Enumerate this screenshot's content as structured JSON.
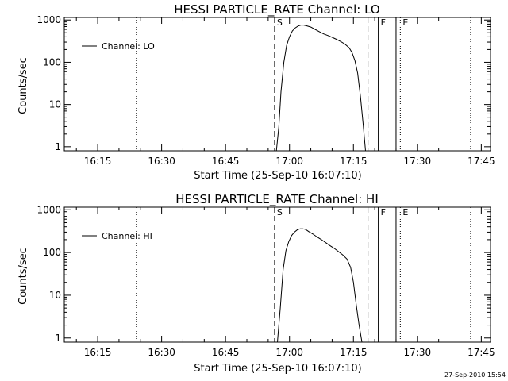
{
  "footer": {
    "timestamp": "27-Sep-2010 15:54"
  },
  "chart_data": [
    {
      "type": "line",
      "scale": "log-y",
      "title": "HESSI PARTICLE_RATE Channel: LO",
      "xlabel": "Start Time (25-Sep-10 16:07:10)",
      "ylabel": "Counts/sec",
      "xlim": [
        "16:07:10",
        "17:47:10"
      ],
      "ylim": [
        0.8,
        1150
      ],
      "x_ticks": [
        {
          "t": "16:15",
          "label": "16:15"
        },
        {
          "t": "16:30",
          "label": "16:30"
        },
        {
          "t": "16:45",
          "label": "16:45"
        },
        {
          "t": "17:00",
          "label": "17:00"
        },
        {
          "t": "17:15",
          "label": "17:15"
        },
        {
          "t": "17:30",
          "label": "17:30"
        },
        {
          "t": "17:45",
          "label": "17:45"
        }
      ],
      "y_ticks": [
        {
          "v": 1,
          "label": "1"
        },
        {
          "v": 10,
          "label": "10"
        },
        {
          "v": 100,
          "label": "100"
        },
        {
          "v": 1000,
          "label": "1000"
        }
      ],
      "legend": {
        "position": "top-left",
        "entries": [
          "Channel: LO"
        ]
      },
      "series": [
        {
          "name": "Channel: LO",
          "points": [
            [
              "16:56:55",
              0.8
            ],
            [
              "16:57:30",
              3
            ],
            [
              "16:58:00",
              20
            ],
            [
              "16:58:40",
              100
            ],
            [
              "16:59:20",
              250
            ],
            [
              "17:00:00",
              400
            ],
            [
              "17:00:40",
              550
            ],
            [
              "17:01:20",
              650
            ],
            [
              "17:02:00",
              720
            ],
            [
              "17:02:40",
              760
            ],
            [
              "17:03:20",
              760
            ],
            [
              "17:04:00",
              730
            ],
            [
              "17:05:00",
              680
            ],
            [
              "17:06:00",
              600
            ],
            [
              "17:07:00",
              530
            ],
            [
              "17:08:00",
              470
            ],
            [
              "17:09:00",
              430
            ],
            [
              "17:10:00",
              390
            ],
            [
              "17:11:00",
              350
            ],
            [
              "17:12:00",
              310
            ],
            [
              "17:13:00",
              270
            ],
            [
              "17:14:00",
              220
            ],
            [
              "17:14:40",
              170
            ],
            [
              "17:15:20",
              110
            ],
            [
              "17:16:00",
              55
            ],
            [
              "17:16:40",
              15
            ],
            [
              "17:17:20",
              3
            ],
            [
              "17:17:50",
              0.8
            ]
          ]
        }
      ],
      "markers": [
        {
          "label": "S",
          "time": "16:56:30",
          "style": "dashed"
        },
        {
          "label": "",
          "time": "17:18:25",
          "style": "dashed"
        },
        {
          "label": "F",
          "time": "17:20:50",
          "style": "solid"
        },
        {
          "label": "",
          "time": "17:25:00",
          "style": "solid"
        },
        {
          "label": "E",
          "time": "17:26:00",
          "style": "dotted"
        },
        {
          "label": "",
          "time": "16:24:05",
          "style": "dotted"
        },
        {
          "label": "",
          "time": "17:42:30",
          "style": "dotted"
        }
      ]
    },
    {
      "type": "line",
      "scale": "log-y",
      "title": "HESSI PARTICLE_RATE Channel: HI",
      "xlabel": "Start Time (25-Sep-10 16:07:10)",
      "ylabel": "Counts/sec",
      "xlim": [
        "16:07:10",
        "17:47:10"
      ],
      "ylim": [
        0.8,
        1150
      ],
      "x_ticks": [
        {
          "t": "16:15",
          "label": "16:15"
        },
        {
          "t": "16:30",
          "label": "16:30"
        },
        {
          "t": "16:45",
          "label": "16:45"
        },
        {
          "t": "17:00",
          "label": "17:00"
        },
        {
          "t": "17:15",
          "label": "17:15"
        },
        {
          "t": "17:30",
          "label": "17:30"
        },
        {
          "t": "17:45",
          "label": "17:45"
        }
      ],
      "y_ticks": [
        {
          "v": 1,
          "label": "1"
        },
        {
          "v": 10,
          "label": "10"
        },
        {
          "v": 100,
          "label": "100"
        },
        {
          "v": 1000,
          "label": "1000"
        }
      ],
      "legend": {
        "position": "top-left",
        "entries": [
          "Channel: HI"
        ]
      },
      "series": [
        {
          "name": "Channel: HI",
          "points": [
            [
              "16:57:10",
              0.8
            ],
            [
              "16:57:50",
              5
            ],
            [
              "16:58:30",
              40
            ],
            [
              "16:59:10",
              110
            ],
            [
              "16:59:50",
              180
            ],
            [
              "17:00:30",
              250
            ],
            [
              "17:01:10",
              300
            ],
            [
              "17:01:50",
              340
            ],
            [
              "17:02:30",
              360
            ],
            [
              "17:03:10",
              360
            ],
            [
              "17:03:50",
              345
            ],
            [
              "17:04:30",
              310
            ],
            [
              "17:05:30",
              270
            ],
            [
              "17:06:30",
              230
            ],
            [
              "17:07:30",
              200
            ],
            [
              "17:08:30",
              170
            ],
            [
              "17:09:30",
              145
            ],
            [
              "17:10:30",
              125
            ],
            [
              "17:11:30",
              105
            ],
            [
              "17:12:30",
              88
            ],
            [
              "17:13:30",
              70
            ],
            [
              "17:14:20",
              45
            ],
            [
              "17:15:00",
              20
            ],
            [
              "17:15:40",
              6
            ],
            [
              "17:16:20",
              2
            ],
            [
              "17:17:00",
              0.8
            ]
          ]
        }
      ],
      "markers": [
        {
          "label": "S",
          "time": "16:56:30",
          "style": "dashed"
        },
        {
          "label": "",
          "time": "17:18:25",
          "style": "dashed"
        },
        {
          "label": "F",
          "time": "17:20:50",
          "style": "solid"
        },
        {
          "label": "",
          "time": "17:25:00",
          "style": "solid"
        },
        {
          "label": "E",
          "time": "17:26:00",
          "style": "dotted"
        },
        {
          "label": "",
          "time": "16:24:05",
          "style": "dotted"
        },
        {
          "label": "",
          "time": "17:42:30",
          "style": "dotted"
        }
      ]
    }
  ]
}
